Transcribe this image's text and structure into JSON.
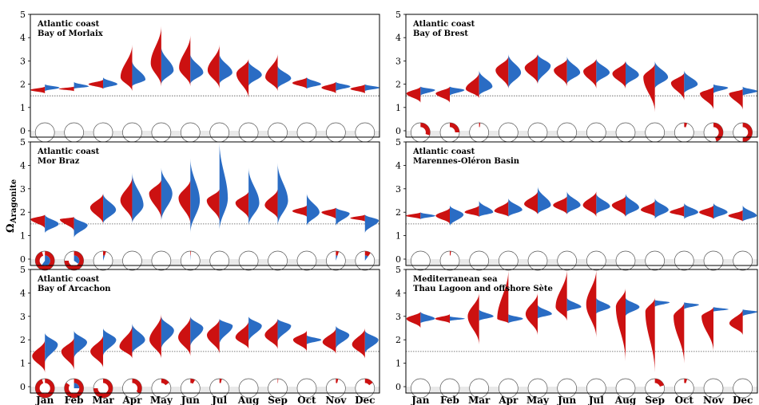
{
  "y_axis_label": "Ω",
  "y_axis_label_sub": "Aragonite",
  "colors": {
    "red": "#cc1111",
    "blue": "#2a6cc4",
    "ref_line": "#555555",
    "baseband": "#e9e9e9"
  },
  "chart_data": [
    {
      "type": "violin",
      "title": "Atlantic coast",
      "subtitle": "Bay of Morlaix",
      "ylim": [
        0,
        5
      ],
      "yticks": [
        0,
        1,
        2,
        3,
        4,
        5
      ],
      "threshold": 1.5,
      "months": [
        "Jan",
        "Feb",
        "Mar",
        "Apr",
        "May",
        "Jun",
        "Jul",
        "Aug",
        "Sep",
        "Oct",
        "Nov",
        "Dec"
      ],
      "red": [
        1.75,
        1.8,
        2.0,
        2.3,
        2.9,
        2.7,
        2.6,
        2.45,
        2.3,
        2.05,
        1.85,
        1.8
      ],
      "blue": [
        1.85,
        1.9,
        2.0,
        2.2,
        2.6,
        2.5,
        2.5,
        2.4,
        2.25,
        2.0,
        1.9,
        1.85
      ],
      "red_range": [
        [
          1.6,
          1.9
        ],
        [
          1.7,
          1.9
        ],
        [
          1.8,
          2.2
        ],
        [
          1.7,
          3.7
        ],
        [
          1.9,
          4.5
        ],
        [
          1.9,
          4.1
        ],
        [
          1.8,
          3.7
        ],
        [
          1.4,
          3.1
        ],
        [
          1.7,
          3.3
        ],
        [
          1.8,
          2.3
        ],
        [
          1.6,
          2.1
        ],
        [
          1.6,
          2.0
        ]
      ],
      "blue_range": [
        [
          1.7,
          2.0
        ],
        [
          1.8,
          2.1
        ],
        [
          1.8,
          2.3
        ],
        [
          1.9,
          3.0
        ],
        [
          2.0,
          3.6
        ],
        [
          2.0,
          3.3
        ],
        [
          2.0,
          3.3
        ],
        [
          1.9,
          3.0
        ],
        [
          1.8,
          2.8
        ],
        [
          1.8,
          2.3
        ],
        [
          1.7,
          2.1
        ],
        [
          1.7,
          2.0
        ]
      ],
      "pie_undersat": [
        0,
        0,
        0,
        0,
        0,
        0,
        0,
        0,
        0,
        0,
        0,
        0
      ],
      "pie_blue": [
        0,
        0,
        0,
        0,
        0,
        0,
        0,
        0,
        0,
        0,
        0,
        0
      ]
    },
    {
      "type": "violin",
      "title": "Atlantic coast",
      "subtitle": "Bay of Brest",
      "ylim": [
        0,
        5
      ],
      "yticks": [
        0,
        1,
        2,
        3,
        4,
        5
      ],
      "threshold": 1.5,
      "months": [
        "Jan",
        "Feb",
        "Mar",
        "Apr",
        "May",
        "Jun",
        "Jul",
        "Aug",
        "Sep",
        "Oct",
        "Nov",
        "Dec"
      ],
      "red": [
        1.6,
        1.6,
        1.8,
        2.6,
        2.7,
        2.6,
        2.55,
        2.45,
        2.3,
        2.05,
        1.6,
        1.6
      ],
      "blue": [
        1.75,
        1.75,
        1.9,
        2.5,
        2.8,
        2.5,
        2.5,
        2.4,
        2.3,
        2.0,
        1.85,
        1.7
      ],
      "red_range": [
        [
          1.2,
          1.9
        ],
        [
          1.2,
          1.9
        ],
        [
          1.4,
          2.5
        ],
        [
          1.8,
          3.2
        ],
        [
          2.0,
          3.3
        ],
        [
          1.9,
          3.1
        ],
        [
          1.8,
          3.1
        ],
        [
          1.8,
          3.0
        ],
        [
          0.8,
          2.9
        ],
        [
          1.3,
          2.5
        ],
        [
          0.9,
          1.9
        ],
        [
          0.9,
          1.8
        ]
      ],
      "blue_range": [
        [
          1.5,
          1.9
        ],
        [
          1.5,
          1.9
        ],
        [
          1.5,
          2.6
        ],
        [
          1.8,
          3.3
        ],
        [
          2.0,
          3.3
        ],
        [
          2.0,
          3.2
        ],
        [
          2.0,
          3.1
        ],
        [
          1.9,
          3.0
        ],
        [
          1.8,
          3.0
        ],
        [
          1.6,
          2.6
        ],
        [
          1.6,
          2.0
        ],
        [
          1.5,
          1.9
        ]
      ],
      "pie_undersat": [
        0.3,
        0.25,
        0.02,
        0,
        0,
        0,
        0,
        0,
        0,
        0.05,
        0.45,
        0.5
      ],
      "pie_blue": [
        0,
        0,
        0,
        0,
        0,
        0,
        0,
        0,
        0,
        0,
        0,
        0
      ]
    },
    {
      "type": "violin",
      "title": "Atlantic coast",
      "subtitle": "Mor Braz",
      "ylim": [
        0,
        5
      ],
      "yticks": [
        0,
        1,
        2,
        3,
        4,
        5
      ],
      "threshold": 1.5,
      "months": [
        "Jan",
        "Feb",
        "Mar",
        "Apr",
        "May",
        "Jun",
        "Jul",
        "Aug",
        "Sep",
        "Oct",
        "Nov",
        "Dec"
      ],
      "red": [
        1.7,
        1.7,
        2.2,
        2.5,
        2.8,
        2.6,
        2.5,
        2.4,
        2.3,
        2.05,
        2.0,
        1.75
      ],
      "blue": [
        1.5,
        1.45,
        2.1,
        2.3,
        2.8,
        2.5,
        2.6,
        2.4,
        2.5,
        2.0,
        1.95,
        1.65
      ],
      "red_range": [
        [
          1.3,
          1.9
        ],
        [
          1.2,
          1.8
        ],
        [
          1.5,
          2.8
        ],
        [
          1.6,
          3.5
        ],
        [
          1.7,
          3.4
        ],
        [
          1.5,
          3.4
        ],
        [
          1.6,
          3.0
        ],
        [
          1.7,
          2.9
        ],
        [
          1.7,
          3.0
        ],
        [
          1.8,
          2.3
        ],
        [
          1.7,
          2.2
        ],
        [
          1.6,
          1.9
        ]
      ],
      "blue_range": [
        [
          1.1,
          1.9
        ],
        [
          0.9,
          1.8
        ],
        [
          1.5,
          2.8
        ],
        [
          1.5,
          3.7
        ],
        [
          1.6,
          3.9
        ],
        [
          1.1,
          4.3
        ],
        [
          1.2,
          5.0
        ],
        [
          1.4,
          3.9
        ],
        [
          1.4,
          4.1
        ],
        [
          1.4,
          2.8
        ],
        [
          1.4,
          2.2
        ],
        [
          1.1,
          1.9
        ]
      ],
      "pie_undersat": [
        0.95,
        0.75,
        0.05,
        0,
        0,
        0.01,
        0,
        0,
        0,
        0,
        0.05,
        0.1
      ],
      "pie_blue": [
        0.6,
        0.35,
        0.05,
        0,
        0,
        0.01,
        0,
        0,
        0,
        0,
        0.05,
        0.1
      ]
    },
    {
      "type": "violin",
      "title": "Atlantic coast",
      "subtitle": "Marennes-Oléron Basin",
      "ylim": [
        0,
        5
      ],
      "yticks": [
        0,
        1,
        2,
        3,
        4,
        5
      ],
      "threshold": 1.5,
      "months": [
        "Jan",
        "Feb",
        "Mar",
        "Apr",
        "May",
        "Jun",
        "Jul",
        "Aug",
        "Sep",
        "Oct",
        "Nov",
        "Dec"
      ],
      "red": [
        1.85,
        1.85,
        2.0,
        2.05,
        2.35,
        2.3,
        2.3,
        2.3,
        2.1,
        2.0,
        2.0,
        1.85
      ],
      "blue": [
        1.85,
        1.9,
        2.0,
        2.1,
        2.3,
        2.3,
        2.25,
        2.2,
        2.1,
        2.0,
        2.0,
        1.85
      ],
      "red_range": [
        [
          1.7,
          2.0
        ],
        [
          1.5,
          2.2
        ],
        [
          1.8,
          2.3
        ],
        [
          1.8,
          2.5
        ],
        [
          1.9,
          2.9
        ],
        [
          1.9,
          2.7
        ],
        [
          1.8,
          2.9
        ],
        [
          1.8,
          2.7
        ],
        [
          1.8,
          2.5
        ],
        [
          1.8,
          2.3
        ],
        [
          1.7,
          2.3
        ],
        [
          1.6,
          2.1
        ]
      ],
      "blue_range": [
        [
          1.7,
          2.0
        ],
        [
          1.4,
          2.3
        ],
        [
          1.8,
          2.5
        ],
        [
          1.8,
          2.6
        ],
        [
          1.9,
          3.1
        ],
        [
          1.9,
          2.9
        ],
        [
          1.9,
          2.8
        ],
        [
          1.8,
          2.8
        ],
        [
          1.7,
          2.6
        ],
        [
          1.7,
          2.4
        ],
        [
          1.7,
          2.4
        ],
        [
          1.6,
          2.3
        ]
      ],
      "pie_undersat": [
        0,
        0.02,
        0,
        0,
        0,
        0,
        0,
        0,
        0,
        0,
        0,
        0
      ],
      "pie_blue": [
        0,
        0,
        0,
        0,
        0,
        0,
        0,
        0,
        0,
        0,
        0,
        0
      ]
    },
    {
      "type": "violin",
      "title": "Atlantic coast",
      "subtitle": "Bay of Arcachon",
      "ylim": [
        0,
        5
      ],
      "yticks": [
        0,
        1,
        2,
        3,
        4,
        5
      ],
      "threshold": 1.5,
      "months": [
        "Jan",
        "Feb",
        "Mar",
        "Apr",
        "May",
        "Jun",
        "Jul",
        "Aug",
        "Sep",
        "Oct",
        "Nov",
        "Dec"
      ],
      "red": [
        1.3,
        1.5,
        1.5,
        1.7,
        2.0,
        2.1,
        2.2,
        2.1,
        2.2,
        2.0,
        1.9,
        1.8
      ],
      "blue": [
        1.8,
        1.9,
        2.0,
        2.0,
        2.4,
        2.5,
        2.6,
        2.6,
        2.6,
        2.0,
        2.2,
        2.0
      ],
      "red_range": [
        [
          0.6,
          2.0
        ],
        [
          0.7,
          2.1
        ],
        [
          0.8,
          2.2
        ],
        [
          1.2,
          2.6
        ],
        [
          1.2,
          3.1
        ],
        [
          1.3,
          3.0
        ],
        [
          1.4,
          2.9
        ],
        [
          1.6,
          2.8
        ],
        [
          1.6,
          2.9
        ],
        [
          1.5,
          2.4
        ],
        [
          1.4,
          2.5
        ],
        [
          1.2,
          2.5
        ]
      ],
      "blue_range": [
        [
          1.0,
          2.3
        ],
        [
          1.2,
          2.4
        ],
        [
          1.3,
          2.5
        ],
        [
          1.4,
          2.7
        ],
        [
          1.6,
          3.0
        ],
        [
          1.7,
          3.0
        ],
        [
          1.8,
          2.9
        ],
        [
          1.9,
          3.0
        ],
        [
          1.9,
          2.9
        ],
        [
          1.8,
          2.2
        ],
        [
          1.6,
          2.6
        ],
        [
          1.4,
          2.4
        ]
      ],
      "pie_undersat": [
        0.95,
        0.85,
        0.75,
        0.35,
        0.15,
        0.08,
        0.04,
        0,
        0.01,
        0,
        0.04,
        0.15
      ],
      "pie_blue": [
        0,
        0.25,
        0,
        0,
        0,
        0,
        0,
        0,
        0,
        0,
        0,
        0
      ]
    },
    {
      "type": "violin",
      "title": "Mediterranean sea",
      "subtitle": "Thau Lagoon and offshore Sète",
      "ylim": [
        0,
        5
      ],
      "yticks": [
        0,
        1,
        2,
        3,
        4,
        5
      ],
      "threshold": 1.5,
      "months": [
        "Jan",
        "Feb",
        "Mar",
        "Apr",
        "May",
        "Jun",
        "Jul",
        "Aug",
        "Sep",
        "Oct",
        "Nov",
        "Dec"
      ],
      "red": [
        2.9,
        2.9,
        3.0,
        2.9,
        3.1,
        3.4,
        3.5,
        3.4,
        3.2,
        3.0,
        3.0,
        2.7
      ],
      "blue": [
        2.9,
        2.9,
        3.0,
        2.9,
        3.1,
        3.4,
        3.4,
        3.4,
        3.6,
        3.5,
        3.3,
        3.2
      ],
      "red_range": [
        [
          2.5,
          3.2
        ],
        [
          2.7,
          3.1
        ],
        [
          1.8,
          4.0
        ],
        [
          2.7,
          5.0
        ],
        [
          2.2,
          4.0
        ],
        [
          2.8,
          5.0
        ],
        [
          2.1,
          5.0
        ],
        [
          1.1,
          4.2
        ],
        [
          0.6,
          3.8
        ],
        [
          1.0,
          3.6
        ],
        [
          1.5,
          3.4
        ],
        [
          2.2,
          3.3
        ]
      ],
      "blue_range": [
        [
          2.7,
          3.2
        ],
        [
          2.8,
          3.0
        ],
        [
          2.8,
          3.3
        ],
        [
          2.7,
          3.1
        ],
        [
          2.9,
          3.5
        ],
        [
          3.2,
          3.8
        ],
        [
          3.1,
          3.8
        ],
        [
          3.0,
          3.8
        ],
        [
          3.4,
          3.7
        ],
        [
          3.3,
          3.6
        ],
        [
          3.2,
          3.4
        ],
        [
          3.0,
          3.3
        ]
      ],
      "pie_undersat": [
        0,
        0,
        0,
        0,
        0,
        0,
        0,
        0,
        0.2,
        0.05,
        0,
        0
      ],
      "pie_blue": [
        0,
        0,
        0,
        0,
        0,
        0,
        0,
        0,
        0,
        0,
        0,
        0
      ]
    }
  ]
}
